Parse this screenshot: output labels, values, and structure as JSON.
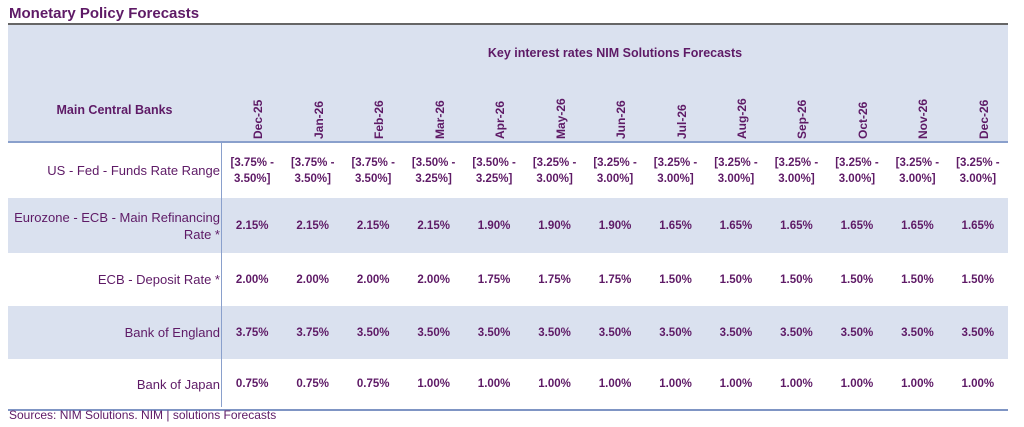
{
  "title": "Monetary Policy Forecasts",
  "header": {
    "bank_col": "Main Central Banks",
    "group": "Key interest rates NIM Solutions Forecasts",
    "months": [
      "Dec-25",
      "Jan-26",
      "Feb-26",
      "Mar-26",
      "Apr-26",
      "May-26",
      "Jun-26",
      "Jul-26",
      "Aug-26",
      "Sep-26",
      "Oct-26",
      "Nov-26",
      "Dec-26"
    ]
  },
  "rows": [
    {
      "label": "US - Fed - Funds Rate Range",
      "values": [
        "[3.75% - 3.50%]",
        "[3.75% - 3.50%]",
        "[3.75% - 3.50%]",
        "[3.50% - 3.25%]",
        "[3.50% - 3.25%]",
        "[3.25% - 3.00%]",
        "[3.25% - 3.00%]",
        "[3.25% - 3.00%]",
        "[3.25% - 3.00%]",
        "[3.25% - 3.00%]",
        "[3.25% - 3.00%]",
        "[3.25% - 3.00%]",
        "[3.25% - 3.00%]"
      ]
    },
    {
      "label": "Eurozone - ECB - Main Refinancing Rate *",
      "values": [
        "2.15%",
        "2.15%",
        "2.15%",
        "2.15%",
        "1.90%",
        "1.90%",
        "1.90%",
        "1.65%",
        "1.65%",
        "1.65%",
        "1.65%",
        "1.65%",
        "1.65%"
      ]
    },
    {
      "label": "ECB - Deposit Rate *",
      "values": [
        "2.00%",
        "2.00%",
        "2.00%",
        "2.00%",
        "1.75%",
        "1.75%",
        "1.75%",
        "1.50%",
        "1.50%",
        "1.50%",
        "1.50%",
        "1.50%",
        "1.50%"
      ]
    },
    {
      "label": "Bank of England",
      "values": [
        "3.75%",
        "3.75%",
        "3.50%",
        "3.50%",
        "3.50%",
        "3.50%",
        "3.50%",
        "3.50%",
        "3.50%",
        "3.50%",
        "3.50%",
        "3.50%",
        "3.50%"
      ]
    },
    {
      "label": "Bank of Japan",
      "values": [
        "0.75%",
        "0.75%",
        "0.75%",
        "1.00%",
        "1.00%",
        "1.00%",
        "1.00%",
        "1.00%",
        "1.00%",
        "1.00%",
        "1.00%",
        "1.00%",
        "1.00%"
      ]
    }
  ],
  "source": "Sources: NIM Solutions. NIM | solutions Forecasts"
}
